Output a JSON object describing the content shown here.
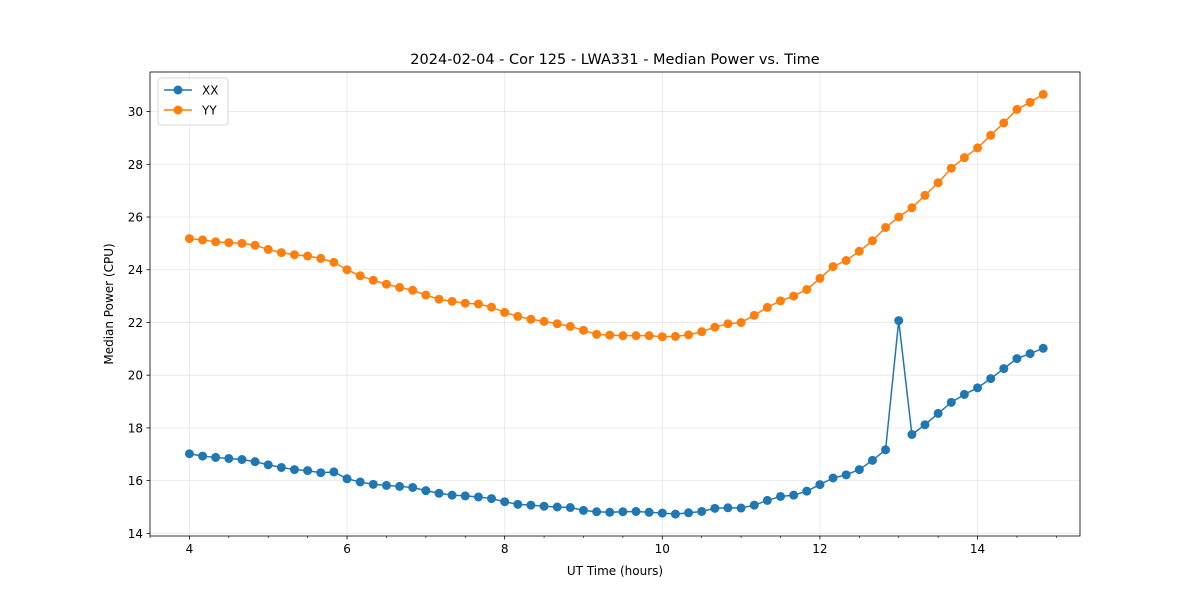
{
  "chart_data": {
    "type": "line",
    "title": "2024-02-04 - Cor 125 - LWA331 - Median Power vs. Time",
    "xlabel": "UT Time (hours)",
    "ylabel": "Median Power (CPU)",
    "xlim": [
      3.5,
      15.3
    ],
    "ylim": [
      13.9,
      31.5
    ],
    "xticks": [
      4,
      6,
      8,
      10,
      12,
      14
    ],
    "yticks": [
      14,
      16,
      18,
      20,
      22,
      24,
      26,
      28,
      30
    ],
    "x_minor_step": 0.5,
    "grid": true,
    "legend_position": "top-left",
    "x": [
      4.0,
      4.167,
      4.333,
      4.5,
      4.667,
      4.833,
      5.0,
      5.167,
      5.333,
      5.5,
      5.667,
      5.833,
      6.0,
      6.167,
      6.333,
      6.5,
      6.667,
      6.833,
      7.0,
      7.167,
      7.333,
      7.5,
      7.667,
      7.833,
      8.0,
      8.167,
      8.333,
      8.5,
      8.667,
      8.833,
      9.0,
      9.167,
      9.333,
      9.5,
      9.667,
      9.833,
      10.0,
      10.167,
      10.333,
      10.5,
      10.667,
      10.833,
      11.0,
      11.167,
      11.333,
      11.5,
      11.667,
      11.833,
      12.0,
      12.167,
      12.333,
      12.5,
      12.667,
      12.833,
      13.0,
      13.167,
      13.333,
      13.5,
      13.667,
      13.833,
      14.0,
      14.167,
      14.333,
      14.5,
      14.667,
      14.833
    ],
    "series": [
      {
        "name": "XX",
        "color": "#1f77b4",
        "values": [
          17.02,
          16.93,
          16.88,
          16.84,
          16.8,
          16.72,
          16.6,
          16.5,
          16.42,
          16.38,
          16.3,
          16.33,
          16.07,
          15.95,
          15.86,
          15.82,
          15.78,
          15.74,
          15.62,
          15.52,
          15.45,
          15.42,
          15.38,
          15.32,
          15.2,
          15.1,
          15.07,
          15.03,
          15.0,
          14.98,
          14.87,
          14.82,
          14.8,
          14.82,
          14.83,
          14.8,
          14.77,
          14.73,
          14.78,
          14.83,
          14.95,
          14.97,
          14.96,
          15.07,
          15.25,
          15.4,
          15.45,
          15.6,
          15.85,
          16.1,
          16.22,
          16.42,
          16.77,
          17.17,
          22.07,
          17.75,
          18.12,
          18.55,
          18.97,
          19.27,
          19.52,
          19.87,
          20.25,
          20.63,
          20.82,
          21.02
        ]
      },
      {
        "name": "YY",
        "color": "#ff7f0e",
        "values": [
          25.18,
          25.13,
          25.06,
          25.03,
          25.0,
          24.93,
          24.77,
          24.65,
          24.57,
          24.52,
          24.43,
          24.28,
          24.0,
          23.77,
          23.6,
          23.45,
          23.33,
          23.22,
          23.04,
          22.88,
          22.8,
          22.73,
          22.7,
          22.58,
          22.38,
          22.23,
          22.12,
          22.04,
          21.95,
          21.85,
          21.7,
          21.55,
          21.52,
          21.5,
          21.5,
          21.5,
          21.46,
          21.47,
          21.53,
          21.65,
          21.82,
          21.95,
          22.0,
          22.27,
          22.57,
          22.82,
          23.0,
          23.25,
          23.67,
          24.12,
          24.35,
          24.7,
          25.1,
          25.6,
          26.0,
          26.35,
          26.82,
          27.3,
          27.85,
          28.25,
          28.62,
          29.1,
          29.57,
          30.08,
          30.35,
          30.65
        ]
      }
    ]
  }
}
